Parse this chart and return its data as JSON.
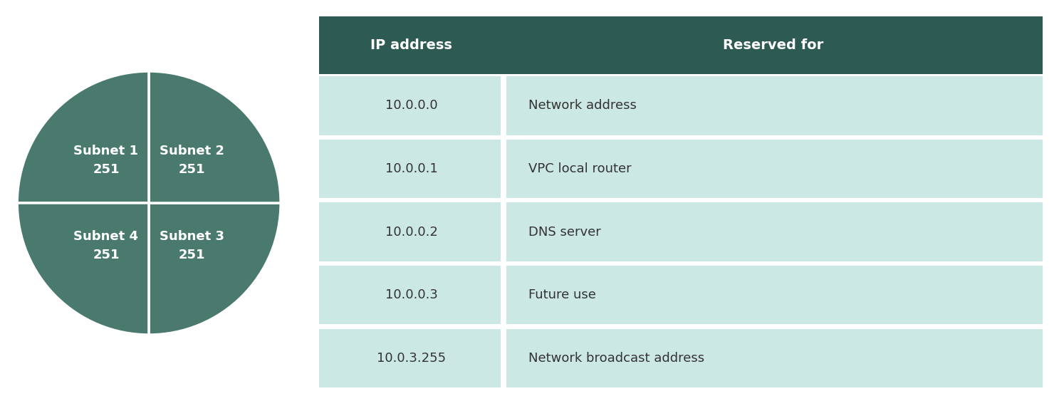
{
  "pie_values": [
    251,
    251,
    251,
    251
  ],
  "pie_color": "#4a7a6d",
  "pie_edge_color": "#ffffff",
  "pie_text_color": "#ffffff",
  "table_header_bg": "#2d5a52",
  "table_header_text": "#ffffff",
  "table_row_bg": "#cce8e4",
  "table_row_gap_color": "#ffffff",
  "table_text_color": "#333333",
  "col1_header": "IP address",
  "col2_header": "Reserved for",
  "rows": [
    [
      "10.0.0.0",
      "Network address"
    ],
    [
      "10.0.0.1",
      "VPC local router"
    ],
    [
      "10.0.0.2",
      "DNS server"
    ],
    [
      "10.0.0.3",
      "Future use"
    ],
    [
      "10.0.3.255",
      "Network broadcast address"
    ]
  ],
  "background_color": "#ffffff",
  "pie_font_size": 13,
  "table_header_font_size": 14,
  "table_row_font_size": 13,
  "pie_label_positions": [
    [
      135,
      "Subnet 1\n251"
    ],
    [
      45,
      "Subnet 2\n251"
    ],
    [
      315,
      "Subnet 3\n251"
    ],
    [
      225,
      "Subnet 4\n251"
    ]
  ]
}
